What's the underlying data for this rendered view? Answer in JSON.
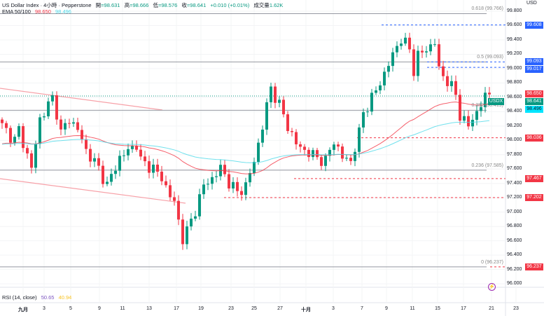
{
  "header": {
    "symbol": "US Dollar Index · 4小時 · Pepperstone",
    "open_label": "開",
    "open": "=98.631",
    "high_label": "高",
    "high": "=98.666",
    "low_label": "低",
    "low": "=98.576",
    "close_label": "收",
    "close": "=98.641",
    "change": "+0.010 (+0.01%)",
    "volume_label": "成交量",
    "volume": "1.62K"
  },
  "ema": {
    "label": "EMA 50/100",
    "ema50": "98.650",
    "ema100": "98.496"
  },
  "rsi": {
    "label": "RSI (14, close)",
    "value1": "50.65",
    "value2": "40.94"
  },
  "currency": "USD",
  "symbol_tag": "USDX",
  "chart_data": {
    "type": "candlestick",
    "title": "US Dollar Index 4H",
    "ylim": [
      96.0,
      99.8
    ],
    "y_ticks": [
      "99.800",
      "99.600",
      "99.400",
      "99.200",
      "99.000",
      "98.800",
      "98.600",
      "98.400",
      "98.200",
      "98.000",
      "97.800",
      "97.600",
      "97.400",
      "97.200",
      "97.000",
      "96.800",
      "96.600",
      "96.400",
      "96.200",
      "96.000"
    ],
    "x_ticks": [
      "九月",
      "3",
      "5",
      "9",
      "11",
      "13",
      "17",
      "19",
      "23",
      "25",
      "27",
      "十月",
      "3",
      "7",
      "9",
      "11",
      "15",
      "17",
      "21",
      "23"
    ],
    "candle_count": 117,
    "price_path": [
      [
        0,
        98.2
      ],
      [
        3,
        98.0
      ],
      [
        4,
        98.15
      ],
      [
        7,
        97.61
      ],
      [
        9,
        98.3
      ],
      [
        12,
        98.59
      ],
      [
        13,
        98.39
      ],
      [
        14,
        98.1
      ],
      [
        16,
        98.3
      ],
      [
        18,
        98.15
      ],
      [
        20,
        97.86
      ],
      [
        23,
        97.61
      ],
      [
        25,
        97.37
      ],
      [
        28,
        97.76
      ],
      [
        32,
        97.95
      ],
      [
        33,
        97.71
      ],
      [
        36,
        97.61
      ],
      [
        38,
        97.47
      ],
      [
        41,
        97.12
      ],
      [
        43,
        96.64
      ],
      [
        44,
        96.73
      ],
      [
        46,
        97.03
      ],
      [
        48,
        97.37
      ],
      [
        50,
        97.47
      ],
      [
        52,
        97.61
      ],
      [
        54,
        97.42
      ],
      [
        56,
        97.27
      ],
      [
        58,
        97.37
      ],
      [
        60,
        97.71
      ],
      [
        62,
        98.2
      ],
      [
        64,
        98.74
      ],
      [
        66,
        98.49
      ],
      [
        68,
        98.2
      ],
      [
        70,
        97.95
      ],
      [
        72,
        97.86
      ],
      [
        75,
        97.76
      ],
      [
        77,
        97.71
      ],
      [
        79,
        98.0
      ],
      [
        81,
        97.76
      ],
      [
        83,
        97.71
      ],
      [
        85,
        98.1
      ],
      [
        86,
        98.39
      ],
      [
        89,
        98.69
      ],
      [
        91,
        98.93
      ],
      [
        94,
        99.32
      ],
      [
        95,
        99.42
      ],
      [
        97,
        99.27
      ],
      [
        98,
        98.98
      ],
      [
        99,
        99.18
      ],
      [
        101,
        99.27
      ],
      [
        103,
        99.37
      ],
      [
        104,
        98.98
      ],
      [
        106,
        98.83
      ],
      [
        108,
        98.64
      ],
      [
        109,
        98.35
      ],
      [
        111,
        98.2
      ],
      [
        113,
        98.4
      ],
      [
        115,
        98.6
      ],
      [
        116,
        98.641
      ]
    ],
    "fib_levels": [
      {
        "label": "0.618 (99.766)",
        "price": 99.766
      },
      {
        "label": "0.5 (99.093)",
        "price": 99.093
      },
      {
        "label": "0.382 (98.419)",
        "price": 98.419
      },
      {
        "label": "0.236 (97.585)",
        "price": 97.585
      },
      {
        "label": "0 (96.237)",
        "price": 96.237
      }
    ],
    "price_badges": [
      {
        "text": "99.608",
        "price": 99.608,
        "color": "#2962ff"
      },
      {
        "text": "99.093",
        "price": 99.093,
        "color": "#2962ff"
      },
      {
        "text": "99.017",
        "price": 99.017,
        "color": "#2962ff"
      },
      {
        "text": "98.650",
        "price": 98.65,
        "color": "#f23645"
      },
      {
        "text": "98.641",
        "price": 98.641,
        "color": "#089981"
      },
      {
        "text": "98.496",
        "price": 98.496,
        "color": "#00e5ff"
      },
      {
        "text": "98.036",
        "price": 98.036,
        "color": "#f23645"
      },
      {
        "text": "97.467",
        "price": 97.467,
        "color": "#f23645"
      },
      {
        "text": "97.202",
        "price": 97.202,
        "color": "#f23645"
      },
      {
        "text": "96.237",
        "price": 96.237,
        "color": "#f23645"
      }
    ],
    "colors": {
      "up": "#089981",
      "down": "#f23645",
      "ema50": "#f23645",
      "ema100": "#4dd9e8"
    }
  }
}
